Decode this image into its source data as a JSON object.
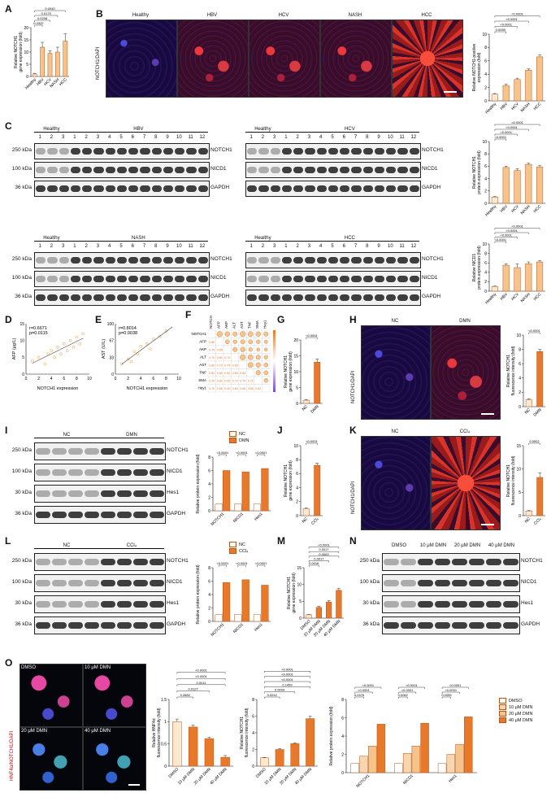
{
  "panels": {
    "A": "A",
    "B": "B",
    "C": "C",
    "D": "D",
    "E": "E",
    "F": "F",
    "G": "G",
    "H": "H",
    "I": "I",
    "J": "J",
    "K": "K",
    "L": "L",
    "M": "M",
    "N": "N",
    "O": "O"
  },
  "colors": {
    "light_bar": "#f6c48a",
    "dark_bar": "#e8782a",
    "bar_edge": "#b5561a"
  },
  "panel_b": {
    "stain_label": "NOTCH1/DAPI",
    "titles": [
      "Healthy",
      "HBV",
      "HCV",
      "NASH",
      "HCC"
    ]
  },
  "blots": {
    "c1": {
      "group1": "Healthy",
      "group2": "HBV",
      "lanes": [
        "1",
        "2",
        "3",
        "1",
        "2",
        "3",
        "4",
        "5",
        "6",
        "7",
        "8",
        "9",
        "10",
        "11",
        "12"
      ],
      "rows": [
        "NOTCH1",
        "NICD1",
        "GAPDH"
      ],
      "kda": [
        "250 kDa",
        "100 kDa",
        "36 kDa"
      ]
    },
    "c2": {
      "group1": "Healthy",
      "group2": "HCV",
      "lanes": [
        "1",
        "2",
        "3",
        "1",
        "2",
        "3",
        "4",
        "5",
        "6",
        "7",
        "8",
        "9",
        "10",
        "11",
        "12"
      ],
      "rows": [
        "NOTCH1",
        "NICD1",
        "GAPDH"
      ]
    },
    "c3": {
      "group1": "Healthy",
      "group2": "NASH",
      "lanes": [
        "1",
        "2",
        "3",
        "1",
        "2",
        "3",
        "4",
        "5",
        "6",
        "7",
        "8",
        "9",
        "10",
        "11",
        "12"
      ],
      "rows": [
        "NOTCH1",
        "NICD1",
        "GAPDH"
      ],
      "kda": [
        "250 kDa",
        "100 kDa",
        "36 kDa"
      ]
    },
    "c4": {
      "group1": "Healthy",
      "group2": "HCC",
      "lanes": [
        "1",
        "2",
        "3",
        "1",
        "2",
        "3",
        "4",
        "5",
        "6",
        "7",
        "8",
        "9",
        "10",
        "11",
        "12"
      ],
      "rows": [
        "NOTCH1",
        "NICD1",
        "GAPDH"
      ]
    },
    "i": {
      "group1": "NC",
      "group2": "DMN",
      "rows": [
        "NOTCH1",
        "NICD1",
        "Hes1",
        "GAPDH"
      ],
      "kda": [
        "250 kDa",
        "100 kDa",
        "30 kDa",
        "36 kDa"
      ]
    },
    "l": {
      "group1": "NC",
      "group2": "CCl₄",
      "rows": [
        "NOTCH1",
        "NICD1",
        "Hes1",
        "GAPDH"
      ],
      "kda": [
        "250 kDa",
        "100 kDa",
        "30 kDa",
        "36 kDa"
      ]
    },
    "n": {
      "groups": [
        "DMSO",
        "10 μM DMN",
        "20 μM DMN",
        "40 μM DMN"
      ],
      "rows": [
        "NOTCH1",
        "NICD1",
        "Hes1",
        "GAPDH"
      ],
      "kda": [
        "250 kDa",
        "100 kDa",
        "30 kDa",
        "36 kDa"
      ]
    }
  },
  "micro": {
    "h": {
      "titles": [
        "NC",
        "DMN"
      ],
      "stain": "NOTCH1/DAPI"
    },
    "k": {
      "titles": [
        "NC",
        "CCl₄"
      ],
      "stain": "NOTCH1/DAPI"
    },
    "o": {
      "titles": [
        "DMSO",
        "10 μM DMN",
        "20 μM DMN",
        "40 μM DMN"
      ],
      "stain": "HNF4α/NOTCH1/DAPI"
    }
  },
  "chart_data": [
    {
      "id": "A",
      "type": "bar",
      "categories": [
        "Healthy",
        "HBV",
        "HCV",
        "NASH",
        "HCC"
      ],
      "values": [
        1.0,
        12.0,
        9.5,
        10.0,
        14.5
      ],
      "errors": [
        0.3,
        2.0,
        1.0,
        2.0,
        3.0
      ],
      "ylabel": "Relative NOTCH1\ngene expression (fold)",
      "ylim": [
        0,
        20
      ],
      "yticks": [
        0,
        5,
        10,
        15,
        20
      ],
      "pvalues": [
        "0.0322",
        "0.0208",
        "0.0170",
        "0.0040"
      ]
    },
    {
      "id": "B",
      "type": "bar",
      "categories": [
        "Healthy",
        "HBV",
        "HCV",
        "NASH",
        "HCC"
      ],
      "values": [
        1.0,
        2.3,
        3.2,
        4.6,
        6.6
      ],
      "errors": [
        0.1,
        0.2,
        0.2,
        0.2,
        0.3
      ],
      "ylabel": "Relative NOTCH1-positive\nexpression (fold)",
      "ylim": [
        0,
        10
      ],
      "yticks": [
        0,
        2,
        4,
        6,
        8,
        10
      ],
      "pvalues": [
        "0.0059",
        "<0.0001",
        "<0.0001",
        "<0.0001"
      ]
    },
    {
      "id": "C1",
      "type": "bar",
      "categories": [
        "Healthy",
        "HBV",
        "HCV",
        "NASH",
        "HCC"
      ],
      "values": [
        1.0,
        5.8,
        5.3,
        6.3,
        5.9
      ],
      "errors": [
        0.1,
        0.2,
        0.3,
        0.2,
        0.2
      ],
      "ylabel": "Relative NOTCH1\nprotein expression (fold)",
      "ylim": [
        0,
        10
      ],
      "yticks": [
        0,
        2,
        4,
        6,
        8,
        10
      ],
      "pvalues": [
        "<0.0001",
        "<0.0001",
        "<0.0001",
        "<0.0001"
      ]
    },
    {
      "id": "C2",
      "type": "bar",
      "categories": [
        "Healthy",
        "HBV",
        "HCV",
        "NASH",
        "HCC"
      ],
      "values": [
        1.0,
        5.5,
        5.0,
        5.8,
        6.2
      ],
      "errors": [
        0.1,
        0.3,
        0.8,
        0.4,
        0.3
      ],
      "ylabel": "Relative NICD1\nprotein expression (fold)",
      "ylim": [
        0,
        10
      ],
      "yticks": [
        0,
        2,
        4,
        6,
        8,
        10
      ],
      "pvalues": [
        "<0.0001",
        "<0.0001",
        "<0.0001",
        "<0.0001"
      ]
    },
    {
      "id": "G",
      "type": "bar",
      "categories": [
        "NC",
        "DMN"
      ],
      "values": [
        1.0,
        13.0
      ],
      "errors": [
        0.2,
        1.0
      ],
      "ylabel": "Relative NOTCH1\ngene expression (fold)",
      "ylim": [
        0,
        20
      ],
      "yticks": [
        0,
        5,
        10,
        15,
        20
      ],
      "pvalues": [
        "<0.0001"
      ]
    },
    {
      "id": "H",
      "type": "bar",
      "categories": [
        "NC",
        "DMN"
      ],
      "values": [
        1.0,
        7.7
      ],
      "errors": [
        0.1,
        0.3
      ],
      "ylabel": "Relative NOTCH1\nfluorescence intensity (fold)",
      "ylim": [
        0,
        10
      ],
      "yticks": [
        0,
        2,
        4,
        6,
        8,
        10
      ],
      "pvalues": [
        "<0.0001"
      ]
    },
    {
      "id": "I",
      "type": "bar",
      "categories": [
        "NOTCH1",
        "NICD1",
        "Hes1"
      ],
      "series": [
        {
          "name": "NC",
          "values": [
            1.0,
            1.0,
            1.0
          ]
        },
        {
          "name": "DMN",
          "values": [
            6.0,
            5.8,
            6.3
          ]
        }
      ],
      "ylabel": "Relative protein expression (fold)",
      "ylim": [
        0,
        8
      ],
      "yticks": [
        0,
        2,
        4,
        6,
        8
      ],
      "pvalues": [
        "<0.0001",
        "<0.0001",
        "<0.0001"
      ]
    },
    {
      "id": "J",
      "type": "bar",
      "categories": [
        "NC",
        "CCl₄"
      ],
      "values": [
        1.0,
        7.2
      ],
      "errors": [
        0.1,
        0.3
      ],
      "ylabel": "Relative NOTCH1\ngene expression (fold)",
      "ylim": [
        0,
        10
      ],
      "yticks": [
        0,
        2,
        4,
        6,
        8,
        10
      ],
      "pvalues": [
        "<0.0001"
      ]
    },
    {
      "id": "K",
      "type": "bar",
      "categories": [
        "NC",
        "CCl₄"
      ],
      "values": [
        1.0,
        8.2
      ],
      "errors": [
        0.1,
        1.0
      ],
      "ylabel": "Relative NOTCH1\nfluorescence intensity (fold)",
      "ylim": [
        0,
        15
      ],
      "yticks": [
        0,
        5,
        10,
        15
      ],
      "pvalues": [
        "0.0002"
      ]
    },
    {
      "id": "L",
      "type": "bar",
      "categories": [
        "NOTCH1",
        "NICD1",
        "Hes1"
      ],
      "series": [
        {
          "name": "NC",
          "values": [
            1.0,
            1.0,
            1.0
          ]
        },
        {
          "name": "CCl₄",
          "values": [
            5.8,
            6.2,
            5.4
          ]
        }
      ],
      "ylabel": "Relative protein expression (fold)",
      "ylim": [
        0,
        8
      ],
      "yticks": [
        0,
        2,
        4,
        6,
        8
      ],
      "pvalues": [
        "<0.0001",
        "<0.0001",
        "<0.0001"
      ]
    },
    {
      "id": "M",
      "type": "bar",
      "categories": [
        "DMSO",
        "10 μM DMN",
        "20 μM DMN",
        "40 μM DMN"
      ],
      "values": [
        1.0,
        3.2,
        4.8,
        8.3
      ],
      "errors": [
        0.1,
        0.3,
        0.4,
        0.6
      ],
      "ylabel": "Relative NOTCH1\ngene expression (fold)",
      "ylim": [
        0,
        15
      ],
      "yticks": [
        0,
        5,
        10,
        15
      ],
      "pvalues": [
        "0.0018",
        "0.0017",
        "0.0063",
        "0.0017",
        "<0.0001"
      ]
    },
    {
      "id": "O1",
      "type": "bar",
      "categories": [
        "DMSO",
        "10 μM DMN",
        "20 μM DMN",
        "40 μM DMN"
      ],
      "values": [
        1.0,
        0.88,
        0.62,
        0.2
      ],
      "errors": [
        0.06,
        0.04,
        0.03,
        0.04
      ],
      "ylabel": "Relative HNF4α\nfluorescence intensity (fold)",
      "ylim": [
        0,
        1.5
      ],
      "yticks": [
        0,
        0.5,
        1.0,
        1.5
      ],
      "pvalues": [
        "0.2682",
        "0.0127",
        "0.0011",
        "<0.0001",
        "<0.0001"
      ]
    },
    {
      "id": "O2",
      "type": "bar",
      "categories": [
        "DMSO",
        "10 μM DMN",
        "20 μM DMN",
        "40 μM DMN"
      ],
      "values": [
        1.0,
        2.0,
        2.7,
        5.7
      ],
      "errors": [
        0.05,
        0.1,
        0.1,
        0.3
      ],
      "ylabel": "Relative NOTCH1\nfluorescence intensity (fold)",
      "ylim": [
        0,
        8
      ],
      "yticks": [
        0,
        2,
        4,
        6,
        8
      ],
      "pvalues": [
        "0.0242",
        "0.0004",
        "0.1459",
        "<0.0001",
        "<0.0001",
        "<0.0001"
      ]
    },
    {
      "id": "O3",
      "type": "bar",
      "categories": [
        "NOTCH1",
        "NICD1",
        "Hes1"
      ],
      "series": [
        {
          "name": "DMSO",
          "values": [
            1.0,
            1.0,
            1.0
          ]
        },
        {
          "name": "10 μM DMN",
          "values": [
            1.8,
            2.1,
            2.0
          ]
        },
        {
          "name": "20 μM DMN",
          "values": [
            2.9,
            2.9,
            3.1
          ]
        },
        {
          "name": "40 μM DMN",
          "values": [
            5.3,
            5.4,
            6.1
          ]
        }
      ],
      "ylabel": "Relative protein expression (fold)",
      "ylim": [
        0,
        8
      ],
      "yticks": [
        0,
        2,
        4,
        6,
        8
      ],
      "pvalues": [
        "0.0476",
        "<0.0001",
        "<0.0001",
        "0.0062",
        "<0.0001",
        "<0.0001",
        "0.0055",
        "<0.0001",
        "<0.0001"
      ]
    },
    {
      "id": "D",
      "type": "scatter",
      "xlabel": "NOTCH1 expression",
      "ylabel": "AFP (μg/L)",
      "xlim": [
        0,
        10
      ],
      "ylim": [
        0,
        15
      ],
      "annotation": [
        "r=0.6671",
        "p=0.0115"
      ],
      "points": [
        [
          1,
          4
        ],
        [
          2,
          5
        ],
        [
          3,
          3
        ],
        [
          3.5,
          6
        ],
        [
          4,
          7
        ],
        [
          4.5,
          5
        ],
        [
          5,
          8
        ],
        [
          5.5,
          6
        ],
        [
          6,
          9
        ],
        [
          6.5,
          7
        ],
        [
          7,
          10
        ],
        [
          7.5,
          8
        ],
        [
          8,
          11
        ],
        [
          8.5,
          9
        ],
        [
          9,
          12
        ]
      ]
    },
    {
      "id": "E",
      "type": "scatter",
      "xlabel": "NOTCH1 expression",
      "ylabel": "AST (U/L)",
      "xlim": [
        0,
        10
      ],
      "ylim": [
        0,
        100
      ],
      "annotation": [
        "r=0.8014",
        "p=0.0038"
      ],
      "points": [
        [
          1,
          20
        ],
        [
          2,
          30
        ],
        [
          2.5,
          25
        ],
        [
          3,
          45
        ],
        [
          3.5,
          40
        ],
        [
          4,
          55
        ],
        [
          5,
          60
        ],
        [
          5.5,
          50
        ],
        [
          6,
          70
        ],
        [
          7,
          75
        ],
        [
          8,
          85
        ]
      ]
    }
  ],
  "corr_f": {
    "labels": [
      "NOTCH1",
      "AFP",
      "AKP",
      "ALT",
      "AST",
      "TNF",
      "SMA",
      "Hey1"
    ],
    "values": [
      [
        1,
        0.85,
        0.75,
        0.7,
        0.85,
        0.8,
        0.75,
        0.7
      ],
      [
        0.85,
        1,
        0.65,
        0.6,
        0.7,
        0.65,
        0.6,
        0.55
      ],
      [
        0.75,
        0.65,
        1,
        0.7,
        0.75,
        0.6,
        0.5,
        0.5
      ],
      [
        0.7,
        0.6,
        0.7,
        1,
        0.85,
        0.8,
        0.7,
        0.6
      ],
      [
        0.85,
        0.7,
        0.75,
        0.85,
        1,
        0.82,
        0.74,
        0.66
      ],
      [
        0.8,
        0.65,
        0.6,
        0.8,
        0.82,
        1,
        0.72,
        0.65
      ],
      [
        0.75,
        0.6,
        0.5,
        0.7,
        0.74,
        0.72,
        1,
        0.62
      ],
      [
        0.7,
        0.55,
        0.5,
        0.6,
        0.66,
        0.65,
        0.62,
        1
      ]
    ],
    "scale": [
      "1.0",
      "0.8",
      "0.6",
      "0.4",
      "0.2",
      "0",
      "-0.2",
      "-0.4",
      "-0.6",
      "-0.8",
      "-1.0"
    ]
  },
  "legends": {
    "i": [
      "NC",
      "DMN"
    ],
    "l": [
      "NC",
      "CCl₄"
    ],
    "o": [
      "DMSO",
      "10 μM DMN",
      "20 μM DMN",
      "40 μM DMN"
    ]
  }
}
